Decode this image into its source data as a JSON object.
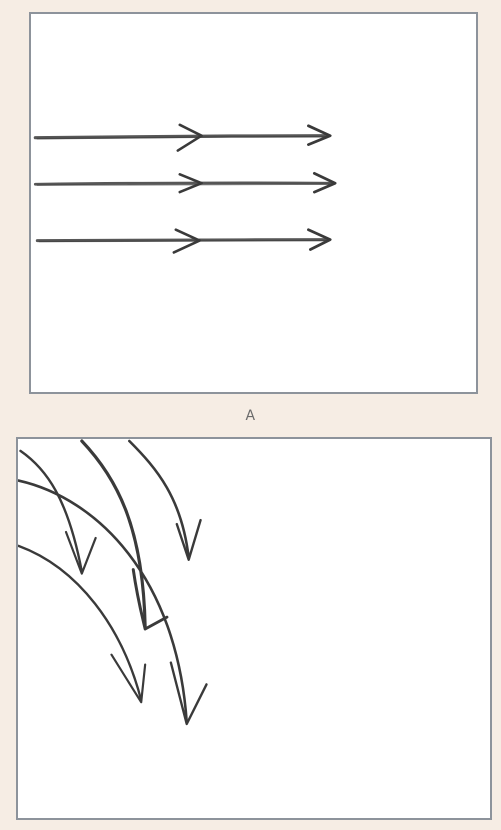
{
  "panels": [
    {
      "id": "A",
      "label": "A",
      "description_type": "straight parallel arrows",
      "arrow_count": 3
    },
    {
      "id": "B",
      "label": "",
      "description_type": "curved arrows",
      "arrow_count": 5
    }
  ],
  "colors": {
    "background": "#f6ede4",
    "panel_fill": "#ffffff",
    "panel_border": "#8d939b",
    "pencil": "#3a3a3a",
    "label": "#6b6b6b"
  }
}
